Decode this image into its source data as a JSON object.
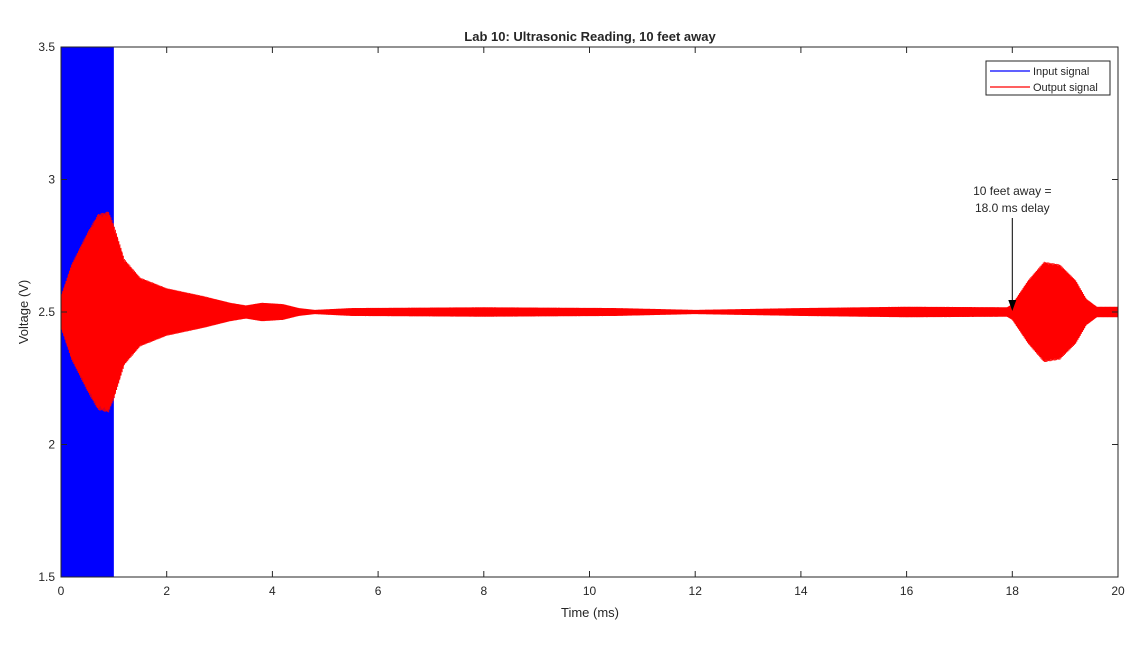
{
  "chart_data": {
    "type": "line",
    "title": "Lab 10: Ultrasonic Reading, 10 feet away",
    "xlabel": "Time (ms)",
    "ylabel": "Voltage (V)",
    "xlim": [
      0,
      20
    ],
    "ylim": [
      1.5,
      3.5
    ],
    "xticks": [
      0,
      2,
      4,
      6,
      8,
      10,
      12,
      14,
      16,
      18,
      20
    ],
    "yticks": [
      1.5,
      2,
      2.5,
      3,
      3.5
    ],
    "x_tick_labels": [
      "0",
      "2",
      "4",
      "6",
      "8",
      "10",
      "12",
      "14",
      "16",
      "18",
      "20"
    ],
    "y_tick_labels": [
      "1.5",
      "2",
      "2.5",
      "3",
      "3.5"
    ],
    "grid": false,
    "legend_position": "top-right",
    "series": [
      {
        "name": "Input signal",
        "color": "#0000ff",
        "description_points": {
          "burst_start_ms": 0,
          "burst_end_ms": 1.0,
          "low": 0,
          "high": 5
        }
      },
      {
        "name": "Output signal",
        "color": "#ff0000",
        "center": 2.5,
        "envelope": [
          [
            0.0,
            0.06
          ],
          [
            0.2,
            0.18
          ],
          [
            0.5,
            0.3
          ],
          [
            0.7,
            0.37
          ],
          [
            0.9,
            0.38
          ],
          [
            1.0,
            0.33
          ],
          [
            1.2,
            0.2
          ],
          [
            1.5,
            0.13
          ],
          [
            2.0,
            0.09
          ],
          [
            2.7,
            0.06
          ],
          [
            3.2,
            0.035
          ],
          [
            3.5,
            0.025
          ],
          [
            3.8,
            0.035
          ],
          [
            4.2,
            0.03
          ],
          [
            4.5,
            0.015
          ],
          [
            4.8,
            0.008
          ],
          [
            5.5,
            0.015
          ],
          [
            8.0,
            0.018
          ],
          [
            10.5,
            0.015
          ],
          [
            12.0,
            0.008
          ],
          [
            14.0,
            0.015
          ],
          [
            16.0,
            0.02
          ],
          [
            17.9,
            0.018
          ],
          [
            18.0,
            0.03
          ],
          [
            18.3,
            0.12
          ],
          [
            18.6,
            0.19
          ],
          [
            18.9,
            0.18
          ],
          [
            19.2,
            0.12
          ],
          [
            19.4,
            0.05
          ],
          [
            19.6,
            0.02
          ],
          [
            20.0,
            0.02
          ]
        ]
      }
    ],
    "annotations": [
      {
        "text_lines": [
          "10 feet away =",
          "18.0 ms delay"
        ],
        "x": 18.0,
        "y": 2.5
      }
    ]
  }
}
